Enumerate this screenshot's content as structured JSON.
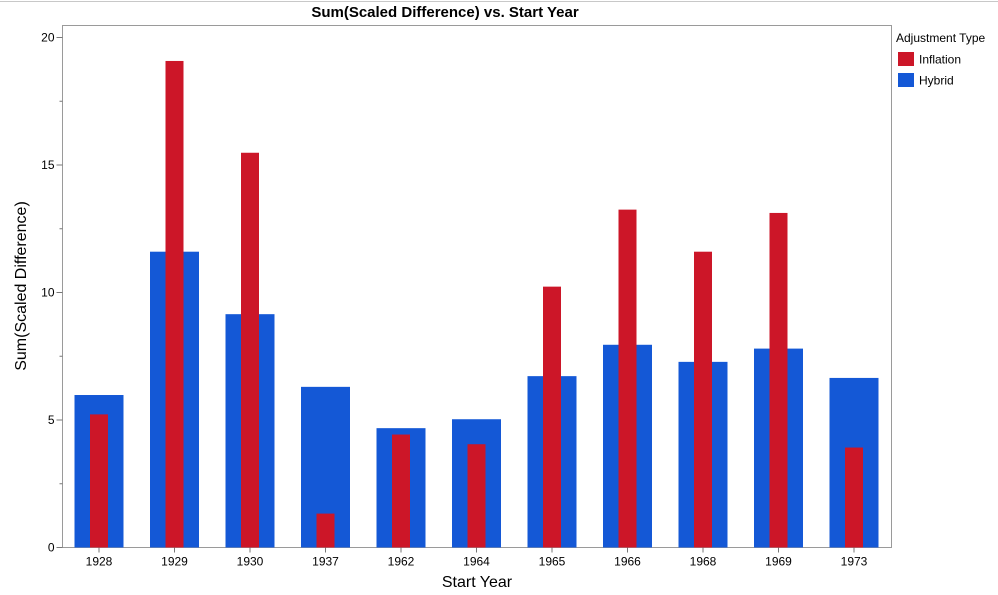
{
  "chart_data": {
    "type": "bar",
    "title": "Sum(Scaled Difference) vs. Start Year",
    "xlabel": "Start Year",
    "ylabel": "Sum(Scaled Difference)",
    "categories": [
      "1928",
      "1929",
      "1930",
      "1937",
      "1962",
      "1964",
      "1965",
      "1966",
      "1968",
      "1969",
      "1973"
    ],
    "ylim": [
      0,
      20.5
    ],
    "yticks": [
      0,
      5,
      10,
      15,
      20
    ],
    "grid": false,
    "legend_title": "Adjustment Type",
    "legend_position": "right",
    "series": [
      {
        "name": "Hybrid",
        "color": "#1458d6",
        "values": [
          5.98,
          11.6,
          9.15,
          6.3,
          4.68,
          5.03,
          6.72,
          7.95,
          7.28,
          7.8,
          6.65
        ]
      },
      {
        "name": "Inflation",
        "color": "#cc1628",
        "values": [
          5.22,
          19.08,
          15.48,
          1.33,
          4.43,
          4.05,
          10.23,
          13.25,
          11.6,
          13.12,
          3.92
        ]
      }
    ],
    "legend_order": [
      "Inflation",
      "Hybrid"
    ]
  }
}
